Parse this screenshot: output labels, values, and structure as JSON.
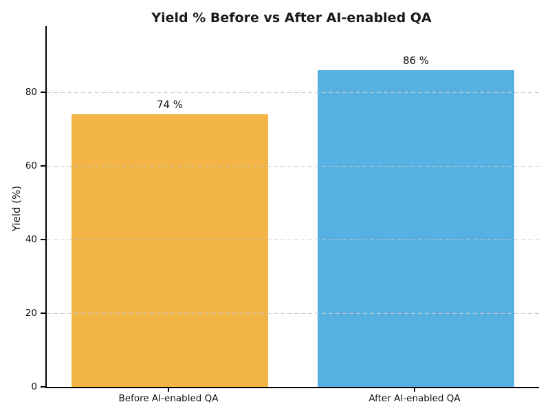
{
  "chart_data": {
    "type": "bar",
    "title": "Yield % Before vs After AI-enabled QA",
    "categories": [
      "Before AI-enabled QA",
      "After AI-enabled QA"
    ],
    "values": [
      74,
      86
    ],
    "bar_value_labels": [
      "74 %",
      "86 %"
    ],
    "bar_colors": [
      "#F2B444",
      "#56B1E2"
    ],
    "xlabel": "",
    "ylabel": "Yield (%)",
    "ylim": [
      0,
      98
    ],
    "yticks": [
      0,
      20,
      40,
      60,
      80
    ],
    "grid": "horizontal dashed gridlines at yticks, drawn over bars",
    "grid_color": "#c9c9c9",
    "spine_color": "#000000",
    "text_color": "#1a1a1a",
    "background_color": "#ffffff",
    "legend": "none",
    "bar_width_fraction": 0.8
  }
}
